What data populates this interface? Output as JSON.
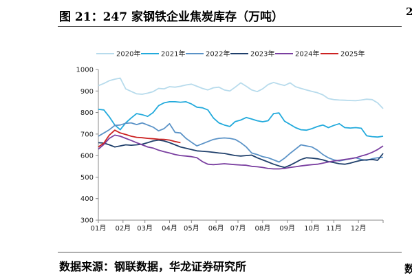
{
  "figure": {
    "title": "图 21：247 家钢铁企业焦炭库存（万吨）",
    "source": "数据来源：钢联数据，华龙证券研究所",
    "edge_glyph_top": "2",
    "edge_glyph_bottom": "数"
  },
  "chart_data": {
    "type": "line",
    "title": "",
    "xlabel": "",
    "ylabel": "",
    "ylim": [
      300,
      1000
    ],
    "yticks": [
      300,
      400,
      500,
      600,
      700,
      800,
      900,
      1000
    ],
    "xlim": [
      1,
      53
    ],
    "xticks": [
      {
        "label": "01月",
        "week": 1
      },
      {
        "label": "02月",
        "week": 5.5
      },
      {
        "label": "03月",
        "week": 9.5
      },
      {
        "label": "04月",
        "week": 14
      },
      {
        "label": "05月",
        "week": 18
      },
      {
        "label": "06月",
        "week": 22.5
      },
      {
        "label": "07月",
        "week": 26.5
      },
      {
        "label": "08月",
        "week": 31
      },
      {
        "label": "09月",
        "week": 35.5
      },
      {
        "label": "10月",
        "week": 40
      },
      {
        "label": "11月",
        "week": 44
      },
      {
        "label": "12月",
        "week": 48.5
      }
    ],
    "grid": false,
    "legend_position": "top",
    "series": [
      {
        "name": "2020年",
        "color": "#b7dbec",
        "values": [
          925,
          935,
          948,
          955,
          960,
          910,
          898,
          887,
          885,
          890,
          897,
          912,
          910,
          920,
          918,
          922,
          928,
          932,
          922,
          912,
          905,
          915,
          918,
          905,
          900,
          918,
          938,
          922,
          905,
          897,
          910,
          930,
          940,
          932,
          926,
          938,
          920,
          912,
          905,
          898,
          892,
          882,
          865,
          860,
          858,
          857,
          856,
          855,
          858,
          862,
          860,
          845,
          818
        ]
      },
      {
        "name": "2021年",
        "color": "#22aadc",
        "values": [
          815,
          812,
          780,
          742,
          720,
          752,
          775,
          795,
          790,
          782,
          800,
          832,
          845,
          850,
          850,
          848,
          850,
          840,
          825,
          822,
          812,
          775,
          752,
          742,
          735,
          758,
          765,
          777,
          770,
          762,
          757,
          762,
          795,
          798,
          760,
          745,
          730,
          720,
          718,
          725,
          735,
          742,
          730,
          740,
          748,
          730,
          728,
          730,
          727,
          692,
          688,
          686,
          690
        ]
      },
      {
        "name": "2022年",
        "color": "#5b93c7",
        "values": [
          690,
          705,
          720,
          740,
          742,
          750,
          752,
          744,
          752,
          742,
          732,
          715,
          725,
          748,
          708,
          705,
          680,
          662,
          645,
          655,
          665,
          675,
          680,
          682,
          680,
          675,
          660,
          640,
          612,
          605,
          595,
          590,
          580,
          570,
          588,
          610,
          630,
          650,
          645,
          640,
          625,
          605,
          590,
          580,
          575,
          580,
          585,
          590,
          582,
          578,
          585,
          590,
          592
        ]
      },
      {
        "name": "2023年",
        "color": "#1f3f6b",
        "values": [
          660,
          658,
          650,
          640,
          645,
          650,
          648,
          650,
          653,
          660,
          668,
          672,
          668,
          660,
          650,
          640,
          634,
          628,
          622,
          620,
          618,
          615,
          612,
          610,
          605,
          600,
          598,
          600,
          602,
          590,
          580,
          570,
          560,
          552,
          545,
          555,
          568,
          582,
          590,
          588,
          585,
          580,
          572,
          568,
          562,
          560,
          565,
          572,
          578,
          580,
          582,
          578,
          610
        ]
      },
      {
        "name": "2024年",
        "color": "#7a3fa0",
        "values": [
          630,
          652,
          680,
          695,
          690,
          680,
          670,
          660,
          650,
          640,
          635,
          625,
          618,
          612,
          605,
          600,
          598,
          595,
          590,
          572,
          560,
          558,
          560,
          562,
          560,
          558,
          556,
          555,
          550,
          548,
          545,
          540,
          538,
          538,
          540,
          545,
          548,
          552,
          555,
          558,
          560,
          565,
          570,
          575,
          578,
          582,
          585,
          590,
          598,
          605,
          615,
          628,
          645
        ]
      },
      {
        "name": "2025年",
        "color": "#cc2222",
        "values": [
          640,
          658,
          695,
          718,
          705,
          698,
          690,
          685,
          683,
          680,
          678,
          676,
          675,
          672,
          665,
          660
        ]
      }
    ]
  }
}
